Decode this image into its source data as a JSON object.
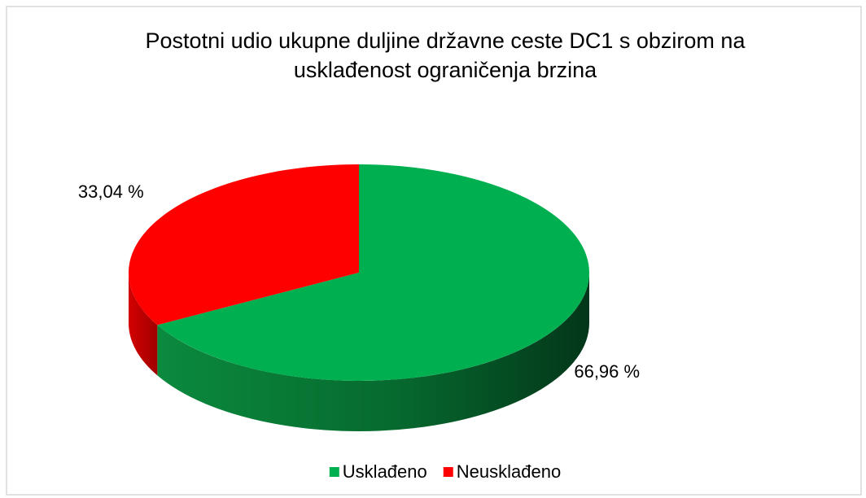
{
  "chart_data": {
    "type": "pie",
    "title": "Postotni udio ukupne duljine državne ceste DC1 s obzirom na usklađenost ograničenja brzina",
    "categories": [
      "Usklađeno",
      "Neusklađeno"
    ],
    "values": [
      66.96,
      33.04
    ],
    "value_labels": [
      "66,96 %",
      "33,04 %"
    ],
    "colors": [
      "#00b050",
      "#ff0000"
    ],
    "legend": "bottom"
  }
}
